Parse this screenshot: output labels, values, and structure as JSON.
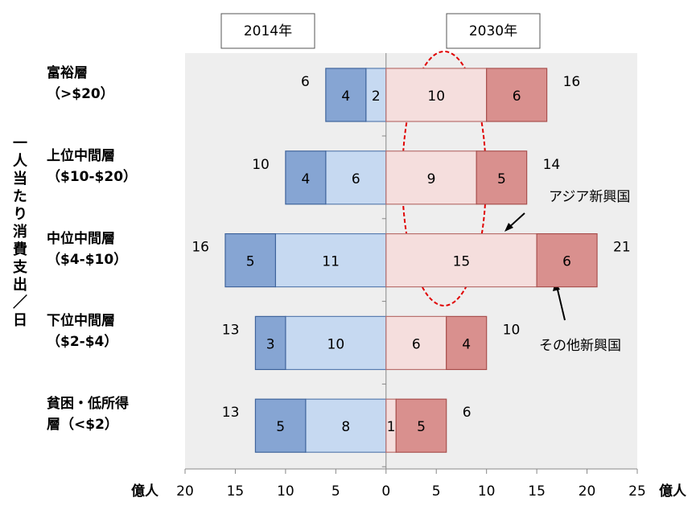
{
  "chart_data": {
    "type": "butterfly-bar",
    "axis_label": "一人当たり消費支出／日",
    "unit_label": "億人",
    "categories": [
      "富裕層\n（>$20）",
      "上位中間層\n（$10-$20）",
      "中位中間層\n（$4-$10）",
      "下位中間層\n（$2-$4）",
      "貧困・低所得\n層（<$2）"
    ],
    "xlim": [
      -20,
      25
    ],
    "xticks": [
      {
        "value": -20,
        "label": "20"
      },
      {
        "value": -15,
        "label": "15"
      },
      {
        "value": -10,
        "label": "10"
      },
      {
        "value": -5,
        "label": "5"
      },
      0,
      5,
      10,
      15,
      20,
      25
    ],
    "panels": [
      {
        "label": "2014年",
        "side": "left",
        "totals": [
          6,
          10,
          16,
          13,
          13
        ],
        "series": [
          {
            "color": "#c6d9f1",
            "stroke": "#5a7db0",
            "values": [
              2,
              6,
              11,
              10,
              8
            ]
          },
          {
            "color": "#86a5d3",
            "stroke": "#3f649c",
            "values": [
              4,
              4,
              5,
              3,
              5
            ]
          }
        ]
      },
      {
        "label": "2030年",
        "side": "right",
        "totals": [
          16,
          14,
          21,
          10,
          6
        ],
        "series": [
          {
            "color": "#f5dedd",
            "stroke": "#b8706e",
            "values": [
              10,
              9,
              15,
              6,
              1
            ]
          },
          {
            "color": "#d9908e",
            "stroke": "#a9504e",
            "values": [
              6,
              5,
              6,
              4,
              5
            ]
          }
        ]
      }
    ],
    "annotations": [
      {
        "text": "アジア新興国"
      },
      {
        "text": "その他新興国"
      }
    ]
  }
}
